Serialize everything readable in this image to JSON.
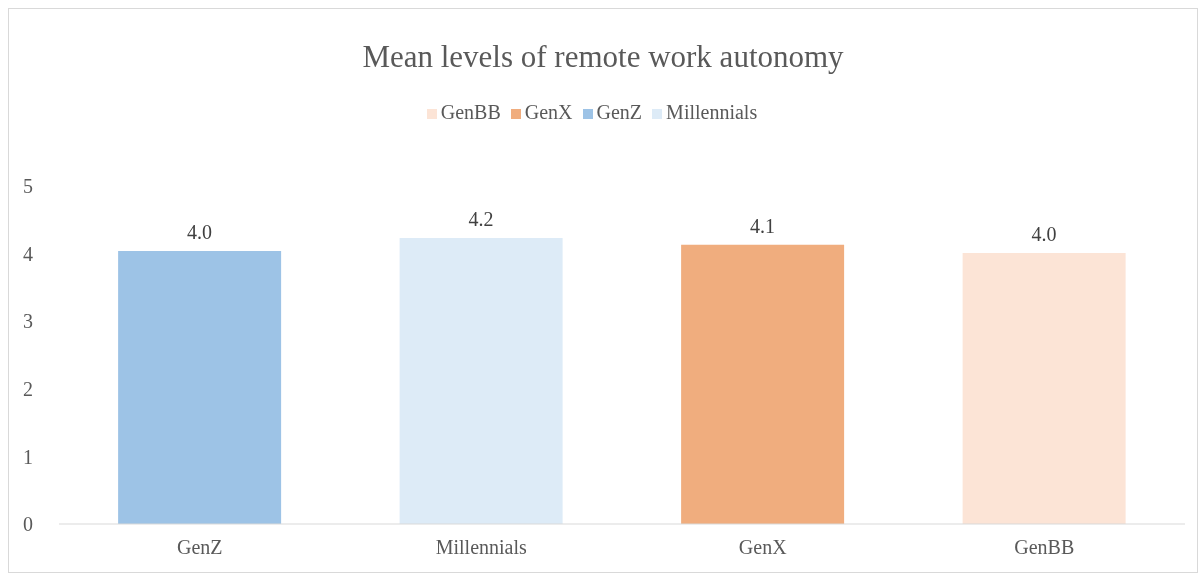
{
  "chart_data": {
    "type": "bar",
    "title": "Mean levels of remote work autonomy",
    "categories": [
      "GenZ",
      "Millennials",
      "GenX",
      "GenBB"
    ],
    "series": [
      {
        "name": "GenZ",
        "color": "#9dc3e6",
        "values": [
          4.04,
          null,
          null,
          null
        ],
        "value_labels": [
          "4.0",
          null,
          null,
          null
        ]
      },
      {
        "name": "Millennials",
        "color": "#ddebf7",
        "values": [
          null,
          4.23,
          null,
          null
        ],
        "value_labels": [
          null,
          "4.2",
          null,
          null
        ]
      },
      {
        "name": "GenX",
        "color": "#f0ad7e",
        "values": [
          null,
          null,
          4.13,
          null
        ],
        "value_labels": [
          null,
          null,
          "4.1",
          null
        ]
      },
      {
        "name": "GenBB",
        "color": "#fce4d6",
        "values": [
          null,
          null,
          null,
          4.01
        ],
        "value_labels": [
          null,
          null,
          null,
          "4.0"
        ]
      }
    ],
    "stacked": true,
    "ylim": [
      0,
      5
    ],
    "yticks": [
      0,
      1,
      2,
      3,
      4,
      5
    ],
    "grid": false,
    "legend": "top"
  }
}
